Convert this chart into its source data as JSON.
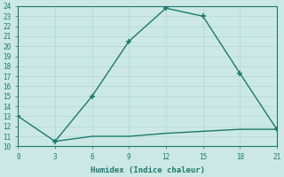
{
  "xlabel": "Humidex (Indice chaleur)",
  "ylabel": "",
  "line1_x": [
    0,
    3,
    6,
    9,
    12,
    15,
    18,
    21
  ],
  "line1_y": [
    13,
    10.5,
    15,
    20.5,
    23.8,
    23,
    17.3,
    11.7
  ],
  "line2_x": [
    3,
    6,
    9,
    12,
    15,
    18,
    21
  ],
  "line2_y": [
    10.5,
    11,
    11,
    11.3,
    11.5,
    11.7,
    11.7
  ],
  "line_color": "#1a7a6e",
  "bg_color": "#cce8e4",
  "grid_color": "#b0d8d2",
  "xlim": [
    0,
    21
  ],
  "ylim": [
    10,
    24
  ],
  "xticks": [
    0,
    3,
    6,
    9,
    12,
    15,
    18,
    21
  ],
  "yticks": [
    10,
    11,
    12,
    13,
    14,
    15,
    16,
    17,
    18,
    19,
    20,
    21,
    22,
    23,
    24
  ],
  "marker": "+",
  "marker_size": 5,
  "linewidth": 1.0
}
